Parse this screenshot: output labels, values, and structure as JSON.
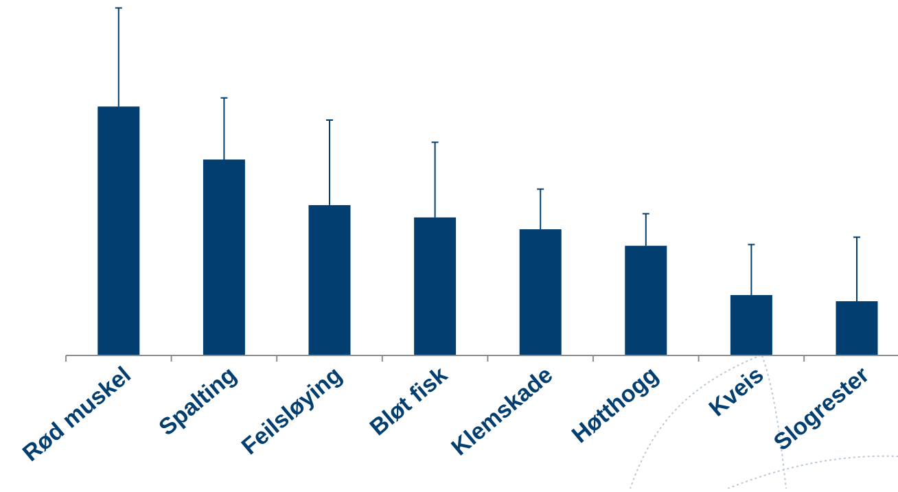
{
  "chart_data": {
    "type": "bar",
    "categories": [
      "Rød muskel",
      "Spalting",
      "Feilsløying",
      "Bløt fisk",
      "Klemskade",
      "Høtthogg",
      "Kveis",
      "Slogrester"
    ],
    "values": [
      10.1,
      7.95,
      6.1,
      5.6,
      5.12,
      4.45,
      2.45,
      2.2
    ],
    "error_upper": [
      14.1,
      10.45,
      9.55,
      8.65,
      6.75,
      5.75,
      4.5,
      4.8
    ],
    "ylim": [
      0,
      14.2
    ],
    "title": "",
    "xlabel": "",
    "ylabel": "",
    "grid": false,
    "legend": "none"
  },
  "colors": {
    "bar": "#023f70",
    "axis": "#8c8c8c",
    "label": "#023f70",
    "decoration": "#b8c7d6"
  }
}
